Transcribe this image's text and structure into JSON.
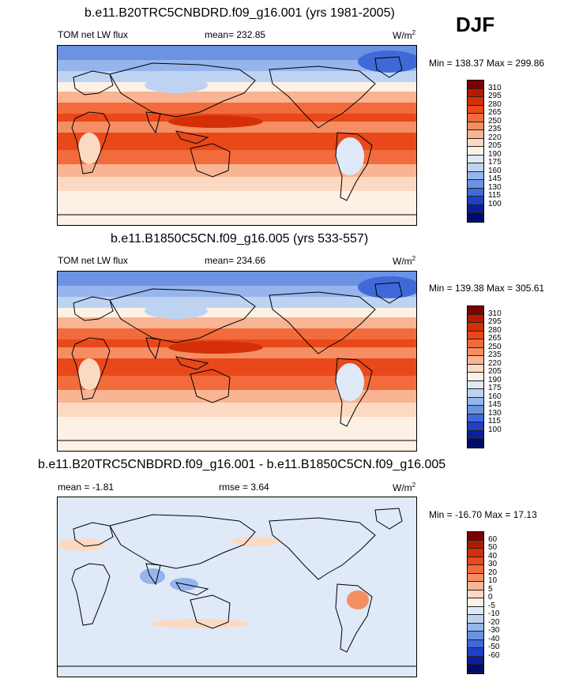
{
  "season": "DJF",
  "panels": [
    {
      "title": "b.e11.B20TRC5CNBDRD.f09_g16.001 (yrs 1981-2005)",
      "left_label": "TOM net LW flux",
      "center_label": "mean= 232.85",
      "units_base": "W/m",
      "units_exp": "2",
      "minmax": "Min = 138.37 Max = 299.86",
      "legend": [
        "310",
        "295",
        "280",
        "265",
        "250",
        "235",
        "220",
        "205",
        "190",
        "175",
        "160",
        "145",
        "130",
        "115",
        "100"
      ],
      "kind": "abs"
    },
    {
      "title": "b.e11.B1850C5CN.f09_g16.005 (yrs 533-557)",
      "left_label": "TOM net LW flux",
      "center_label": "mean= 234.66",
      "units_base": "W/m",
      "units_exp": "2",
      "minmax": "Min = 139.38 Max = 305.61",
      "legend": [
        "310",
        "295",
        "280",
        "265",
        "250",
        "235",
        "220",
        "205",
        "190",
        "175",
        "160",
        "145",
        "130",
        "115",
        "100"
      ],
      "kind": "abs"
    },
    {
      "title": "b.e11.B20TRC5CNBDRD.f09_g16.001 - b.e11.B1850C5CN.f09_g16.005",
      "left_label": "mean =  -1.81",
      "center_label": "rmse =   3.64",
      "units_base": "W/m",
      "units_exp": "2",
      "minmax": "Min = -16.70 Max =  17.13",
      "legend": [
        "60",
        "50",
        "40",
        "30",
        "20",
        "10",
        "5",
        "0",
        "-5",
        "-10",
        "-20",
        "-30",
        "-40",
        "-50",
        "-60"
      ],
      "kind": "diff"
    }
  ],
  "colors": {
    "ramp": [
      "#7f0000",
      "#b31b00",
      "#d42f06",
      "#e8481a",
      "#f26b3c",
      "#f58e63",
      "#f9b493",
      "#fcd9c2",
      "#fdf1e6",
      "#dfe9f7",
      "#bed3f2",
      "#95b5ec",
      "#6b92e3",
      "#4069d8",
      "#1f3fc4",
      "#0c1f9a",
      "#000a6e"
    ]
  }
}
